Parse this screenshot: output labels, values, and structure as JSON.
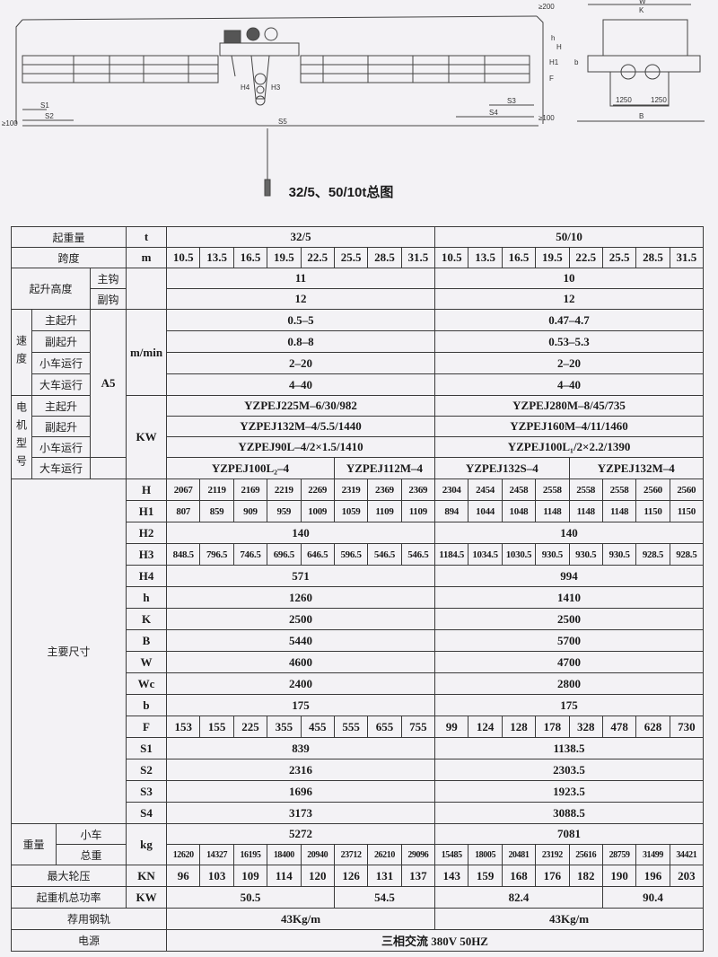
{
  "drawing": {
    "title": "32/5、50/10t总图",
    "labels": {
      "s1": "S1",
      "s2": "S2",
      "s3": "S3",
      "s4": "S4",
      "s5": "S5",
      "min_left": "≥100",
      "min_right": "≥100",
      "top_clear": "≥200",
      "h4": "H4",
      "h3": "H3",
      "h1": "H1",
      "h": "h",
      "H": "H",
      "f": "F",
      "k": "K",
      "w": "W",
      "b_small": "b",
      "gauge_left": "1250",
      "gauge_right": "1250",
      "B": "B"
    }
  },
  "table": {
    "labels": {
      "capacity": "起重量",
      "span": "跨度",
      "lift_height": "起升高度",
      "main_hook": "主钩",
      "aux_hook": "副钩",
      "speed": "速度",
      "motor_model": "电机型号",
      "main_hoist": "主起升",
      "aux_hoist": "副起升",
      "trolley_travel": "小车运行",
      "crane_travel": "大车运行",
      "duty": "A5",
      "main_dims": "主要尺寸",
      "weight": "重量",
      "trolley": "小车",
      "total_weight": "总重",
      "max_wheel_load": "最大轮压",
      "total_power": "起重机总功率",
      "rail": "荐用钢轨",
      "power_supply": "电源"
    },
    "rows": [
      {
        "unit": "t",
        "values": [
          "32/5",
          "50/10"
        ]
      },
      {
        "unit": "m",
        "values": [
          "10.5",
          "13.5",
          "16.5",
          "19.5",
          "22.5",
          "25.5",
          "28.5",
          "31.5",
          "10.5",
          "13.5",
          "16.5",
          "19.5",
          "22.5",
          "25.5",
          "28.5",
          "31.5"
        ]
      },
      {
        "unit": "",
        "values": [
          "11",
          "10"
        ]
      },
      {
        "unit": "",
        "values": [
          "12",
          "12"
        ]
      },
      {
        "unit": "m/min",
        "values": [
          "0.5–5",
          "0.47–4.7"
        ]
      },
      {
        "unit": "",
        "values": [
          "0.8–8",
          "0.53–5.3"
        ]
      },
      {
        "unit": "",
        "values": [
          "2–20",
          "2–20"
        ]
      },
      {
        "unit": "",
        "values": [
          "4–40",
          "4–40"
        ]
      },
      {
        "unit": "KW",
        "values": [
          "YZPEJ225M–6/30/982",
          "YZPEJ280M–8/45/735"
        ]
      },
      {
        "unit": "",
        "values": [
          "YZPEJ132M–4/5.5/1440",
          "YZPEJ160M–4/11/1460"
        ]
      },
      {
        "unit": "",
        "values": [
          "YZPEJ90L–4/2×1.5/1410",
          "YZPEJ100L₁/2×2.2/1390"
        ]
      },
      {
        "unit": "",
        "values": [
          "YZPEJ100L₂–4",
          "YZPEJ100L₂–4",
          "YZPEJ100L₂–4",
          "YZPEJ100L₂–4",
          "YZPEJ100L₂–4",
          "YZPEJ112M–4",
          "YZPEJ112M–4",
          "YZPEJ112M–4",
          "YZPEJ132S–4",
          "YZPEJ132S–4",
          "YZPEJ132S–4",
          "YZPEJ132S–4",
          "YZPEJ132M–4",
          "YZPEJ132M–4",
          "YZPEJ132M–4",
          "YZPEJ132M–4"
        ]
      },
      {
        "unit": "H",
        "values": [
          "2067",
          "2119",
          "2169",
          "2219",
          "2269",
          "2319",
          "2369",
          "2369",
          "2304",
          "2454",
          "2458",
          "2558",
          "2558",
          "2558",
          "2560",
          "2560"
        ]
      },
      {
        "unit": "H1",
        "values": [
          "807",
          "859",
          "909",
          "959",
          "1009",
          "1059",
          "1109",
          "1109",
          "894",
          "1044",
          "1048",
          "1148",
          "1148",
          "1148",
          "1150",
          "1150"
        ]
      },
      {
        "unit": "H2",
        "values": [
          "140",
          "140"
        ]
      },
      {
        "unit": "H3",
        "values": [
          "848.5",
          "796.5",
          "746.5",
          "696.5",
          "646.5",
          "596.5",
          "546.5",
          "546.5",
          "1184.5",
          "1034.5",
          "1030.5",
          "930.5",
          "930.5",
          "930.5",
          "928.5",
          "928.5"
        ]
      },
      {
        "unit": "H4",
        "values": [
          "571",
          "994"
        ]
      },
      {
        "unit": "h",
        "values": [
          "1260",
          "1410"
        ]
      },
      {
        "unit": "K",
        "values": [
          "2500",
          "2500"
        ]
      },
      {
        "unit": "B",
        "values": [
          "5440",
          "5700"
        ]
      },
      {
        "unit": "W",
        "values": [
          "4600",
          "4700"
        ]
      },
      {
        "unit": "Wc",
        "values": [
          "2400",
          "2800"
        ]
      },
      {
        "unit": "b",
        "values": [
          "175",
          "175"
        ]
      },
      {
        "unit": "F",
        "values": [
          "153",
          "155",
          "225",
          "355",
          "455",
          "555",
          "655",
          "755",
          "99",
          "124",
          "128",
          "178",
          "328",
          "478",
          "628",
          "730"
        ]
      },
      {
        "unit": "S1",
        "values": [
          "839",
          "1138.5"
        ]
      },
      {
        "unit": "S2",
        "values": [
          "2316",
          "2303.5"
        ]
      },
      {
        "unit": "S3",
        "values": [
          "1696",
          "1923.5"
        ]
      },
      {
        "unit": "S4",
        "values": [
          "3173",
          "3088.5"
        ]
      },
      {
        "unit": "kg",
        "values": [
          "5272",
          "7081"
        ]
      },
      {
        "unit": "",
        "values": [
          "12620",
          "14327",
          "16195",
          "18400",
          "20940",
          "23712",
          "26210",
          "29096",
          "15485",
          "18005",
          "20481",
          "23192",
          "25616",
          "28759",
          "31499",
          "34421"
        ]
      },
      {
        "unit": "KN",
        "values": [
          "96",
          "103",
          "109",
          "114",
          "120",
          "126",
          "131",
          "137",
          "143",
          "159",
          "168",
          "176",
          "182",
          "190",
          "196",
          "203"
        ]
      },
      {
        "unit": "KW",
        "values": [
          "50.5",
          "50.5",
          "50.5",
          "50.5",
          "50.5",
          "54.5",
          "54.5",
          "54.5",
          "82.4",
          "82.4",
          "82.4",
          "82.4",
          "82.4",
          "90.4",
          "90.4",
          "90.4"
        ]
      },
      {
        "unit": "",
        "values": [
          "43Kg/m",
          "43Kg/m"
        ]
      },
      {
        "unit": "",
        "values": [
          "三相交流 380V 50HZ"
        ]
      }
    ]
  }
}
